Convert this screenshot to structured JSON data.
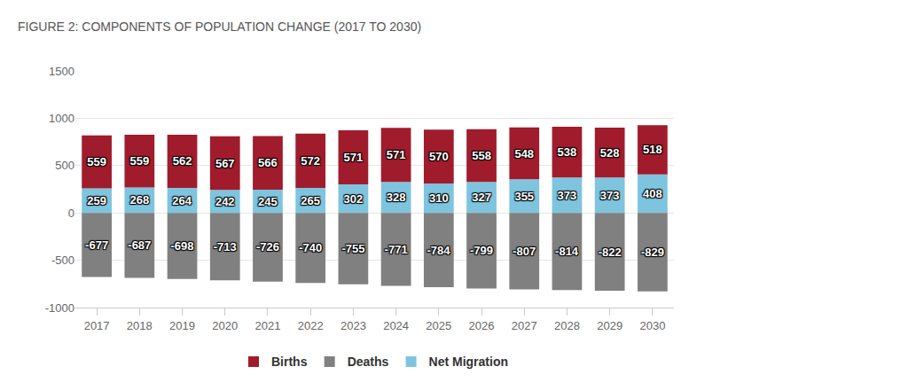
{
  "chart_data": {
    "type": "bar",
    "title": "FIGURE 2: COMPONENTS OF POPULATION CHANGE (2017 TO 2030)",
    "categories": [
      "2017",
      "2018",
      "2019",
      "2020",
      "2021",
      "2022",
      "2023",
      "2024",
      "2025",
      "2026",
      "2027",
      "2028",
      "2029",
      "2030"
    ],
    "series": [
      {
        "name": "Births",
        "color": "#a01c2c",
        "values": [
          559,
          559,
          562,
          567,
          566,
          572,
          571,
          571,
          570,
          558,
          548,
          538,
          528,
          518
        ]
      },
      {
        "name": "Deaths",
        "color": "#808080",
        "values": [
          -677,
          -687,
          -698,
          -713,
          -726,
          -740,
          -755,
          -771,
          -784,
          -799,
          -807,
          -814,
          -822,
          -829
        ]
      },
      {
        "name": "Net Migration",
        "color": "#7ec4de",
        "values": [
          259,
          268,
          264,
          242,
          245,
          265,
          302,
          328,
          310,
          327,
          355,
          373,
          373,
          408
        ]
      }
    ],
    "ylim": [
      -1000,
      1500
    ],
    "yticks": [
      -1000,
      -500,
      0,
      500,
      1000,
      1500
    ],
    "stacked": true,
    "data_labels": true,
    "grid": true,
    "legend": "bottom"
  }
}
